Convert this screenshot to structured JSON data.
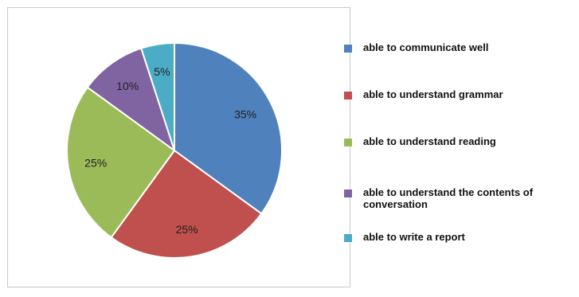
{
  "chart_data": {
    "type": "pie",
    "title": "",
    "start_angle_deg": 0,
    "direction": "clockwise",
    "legend_position": "right",
    "slices": [
      {
        "label": "able to communicate well",
        "value": 35,
        "data_label": "35%",
        "color": "#4f81bd"
      },
      {
        "label": "able to understand grammar",
        "value": 25,
        "data_label": "25%",
        "color": "#c0504d"
      },
      {
        "label": "able to understand reading",
        "value": 25,
        "data_label": "25%",
        "color": "#9bbb59"
      },
      {
        "label": "able to understand the contents of conversation",
        "value": 10,
        "data_label": "10%",
        "color": "#8064a2"
      },
      {
        "label": "able to write a report",
        "value": 5,
        "data_label": "5%",
        "color": "#4bacc6"
      }
    ]
  }
}
